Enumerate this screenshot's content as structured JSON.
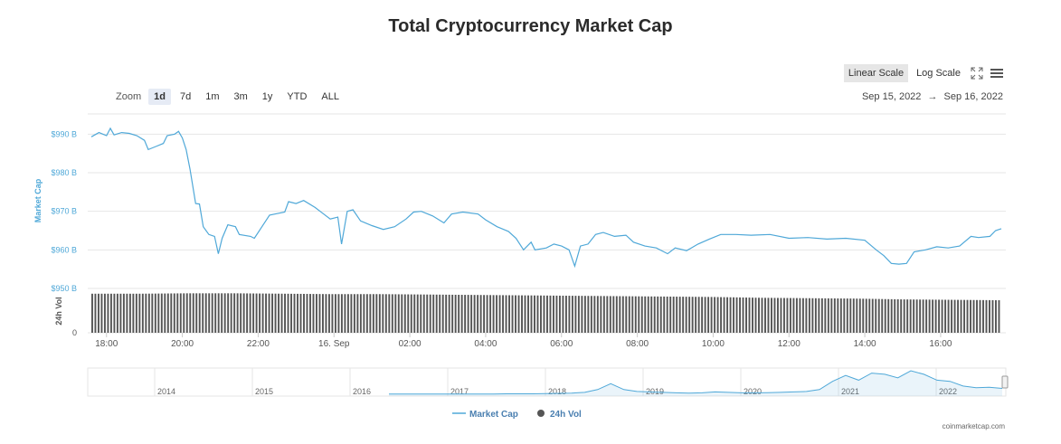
{
  "title": "Total Cryptocurrency Market Cap",
  "zoom": {
    "label": "Zoom",
    "options": [
      "1d",
      "7d",
      "1m",
      "3m",
      "1y",
      "YTD",
      "ALL"
    ],
    "active": "1d"
  },
  "range": {
    "from": "Sep 15, 2022",
    "arrow": "→",
    "to": "Sep 16, 2022"
  },
  "scale": {
    "linear": "Linear Scale",
    "log": "Log Scale",
    "active": "linear"
  },
  "icons": {
    "fullscreen": "expand-icon",
    "menu": "hamburger-menu-icon"
  },
  "colors": {
    "market_cap": "#4fa8d8",
    "volume": "#555555",
    "grid": "#e6e6e6"
  },
  "footer": "coinmarketcap.com",
  "chart_data": [
    {
      "type": "line",
      "name": "main",
      "ylabel": "Market Cap",
      "ylabel_vol": "24h Vol",
      "yticks": [
        "$990 B",
        "$980 B",
        "$970 B",
        "$960 B",
        "$950 B"
      ],
      "ytick_values": [
        990,
        980,
        970,
        960,
        950
      ],
      "vol_ytick": "0",
      "ylim": [
        950,
        995
      ],
      "x_ticks": [
        "18:00",
        "20:00",
        "22:00",
        "16. Sep",
        "02:00",
        "04:00",
        "06:00",
        "08:00",
        "10:00",
        "12:00",
        "14:00",
        "16:00"
      ],
      "x_tick_hours": [
        18,
        20,
        22,
        24,
        26,
        28,
        30,
        32,
        34,
        36,
        38,
        40
      ],
      "x_start_hour": 17.6,
      "x_end_hour": 41.6,
      "series": [
        {
          "name": "Market Cap",
          "points": [
            [
              17.6,
              989.3
            ],
            [
              17.8,
              990.4
            ],
            [
              18.0,
              989.6
            ],
            [
              18.1,
              991.5
            ],
            [
              18.2,
              989.8
            ],
            [
              18.4,
              990.4
            ],
            [
              18.6,
              990.2
            ],
            [
              18.8,
              989.6
            ],
            [
              19.0,
              988.4
            ],
            [
              19.1,
              986.0
            ],
            [
              19.3,
              986.8
            ],
            [
              19.5,
              987.6
            ],
            [
              19.6,
              989.6
            ],
            [
              19.8,
              990.0
            ],
            [
              19.9,
              990.7
            ],
            [
              20.0,
              989.0
            ],
            [
              20.1,
              986.0
            ],
            [
              20.2,
              981.0
            ],
            [
              20.35,
              972.0
            ],
            [
              20.45,
              971.9
            ],
            [
              20.55,
              966.0
            ],
            [
              20.7,
              964.0
            ],
            [
              20.85,
              963.5
            ],
            [
              20.95,
              959.0
            ],
            [
              21.05,
              963.0
            ],
            [
              21.2,
              966.5
            ],
            [
              21.4,
              966.0
            ],
            [
              21.5,
              964.0
            ],
            [
              21.8,
              963.5
            ],
            [
              21.9,
              963.0
            ],
            [
              22.1,
              966.0
            ],
            [
              22.3,
              969.0
            ],
            [
              22.5,
              969.4
            ],
            [
              22.7,
              969.8
            ],
            [
              22.8,
              972.5
            ],
            [
              23.0,
              972.0
            ],
            [
              23.2,
              972.8
            ],
            [
              23.5,
              971.0
            ],
            [
              23.7,
              969.5
            ],
            [
              23.9,
              968.0
            ],
            [
              24.1,
              968.5
            ],
            [
              24.2,
              961.5
            ],
            [
              24.35,
              970.0
            ],
            [
              24.5,
              970.4
            ],
            [
              24.7,
              967.5
            ],
            [
              25.0,
              966.3
            ],
            [
              25.3,
              965.3
            ],
            [
              25.6,
              966.0
            ],
            [
              25.9,
              968.0
            ],
            [
              26.1,
              969.8
            ],
            [
              26.3,
              970.0
            ],
            [
              26.6,
              968.8
            ],
            [
              26.9,
              967.0
            ],
            [
              27.1,
              969.3
            ],
            [
              27.4,
              969.8
            ],
            [
              27.8,
              969.3
            ],
            [
              28.0,
              967.8
            ],
            [
              28.3,
              966.0
            ],
            [
              28.6,
              964.8
            ],
            [
              28.8,
              963.0
            ],
            [
              29.0,
              960.0
            ],
            [
              29.2,
              962.0
            ],
            [
              29.3,
              960.0
            ],
            [
              29.6,
              960.5
            ],
            [
              29.8,
              961.5
            ],
            [
              30.0,
              961.0
            ],
            [
              30.2,
              960.0
            ],
            [
              30.35,
              955.8
            ],
            [
              30.5,
              961.0
            ],
            [
              30.7,
              961.5
            ],
            [
              30.9,
              964.0
            ],
            [
              31.1,
              964.5
            ],
            [
              31.4,
              963.5
            ],
            [
              31.7,
              963.8
            ],
            [
              31.9,
              962.0
            ],
            [
              32.2,
              961.0
            ],
            [
              32.5,
              960.5
            ],
            [
              32.8,
              959.0
            ],
            [
              33.0,
              960.5
            ],
            [
              33.3,
              959.8
            ],
            [
              33.6,
              961.5
            ],
            [
              33.9,
              962.8
            ],
            [
              34.2,
              964.0
            ],
            [
              34.6,
              964.0
            ],
            [
              35.0,
              963.8
            ],
            [
              35.5,
              964.0
            ],
            [
              36.0,
              963.0
            ],
            [
              36.5,
              963.2
            ],
            [
              37.0,
              962.8
            ],
            [
              37.5,
              963.0
            ],
            [
              38.0,
              962.5
            ],
            [
              38.3,
              960.0
            ],
            [
              38.5,
              958.5
            ],
            [
              38.7,
              956.5
            ],
            [
              38.9,
              956.3
            ],
            [
              39.1,
              956.5
            ],
            [
              39.3,
              959.5
            ],
            [
              39.6,
              960.0
            ],
            [
              39.9,
              960.8
            ],
            [
              40.2,
              960.5
            ],
            [
              40.5,
              961.0
            ],
            [
              40.8,
              963.5
            ],
            [
              41.0,
              963.2
            ],
            [
              41.3,
              963.5
            ],
            [
              41.45,
              965.0
            ],
            [
              41.6,
              965.5
            ]
          ]
        },
        {
          "name": "24h Vol",
          "note_bars": "uniform",
          "values_relative": [
            0.96,
            0.96,
            0.97,
            0.97,
            0.96,
            0.95,
            0.95,
            0.94,
            0.93,
            0.92,
            0.91,
            0.9,
            0.89,
            0.88,
            0.86,
            0.85,
            0.84,
            0.82,
            0.81,
            0.8
          ]
        }
      ]
    },
    {
      "type": "area",
      "name": "navigator",
      "x_ticks": [
        "2014",
        "2015",
        "2016",
        "2017",
        "2018",
        "2019",
        "2020",
        "2021",
        "2022"
      ],
      "values": [
        0.01,
        0.01,
        0.01,
        0.01,
        0.01,
        0.01,
        0.01,
        0.01,
        0.01,
        0.02,
        0.02,
        0.02,
        0.03,
        0.04,
        0.05,
        0.08,
        0.2,
        0.45,
        0.2,
        0.12,
        0.1,
        0.08,
        0.06,
        0.05,
        0.06,
        0.1,
        0.08,
        0.06,
        0.06,
        0.07,
        0.08,
        0.1,
        0.12,
        0.2,
        0.55,
        0.8,
        0.6,
        0.9,
        0.85,
        0.7,
        1.0,
        0.85,
        0.6,
        0.55,
        0.35,
        0.28,
        0.3,
        0.25
      ]
    }
  ]
}
